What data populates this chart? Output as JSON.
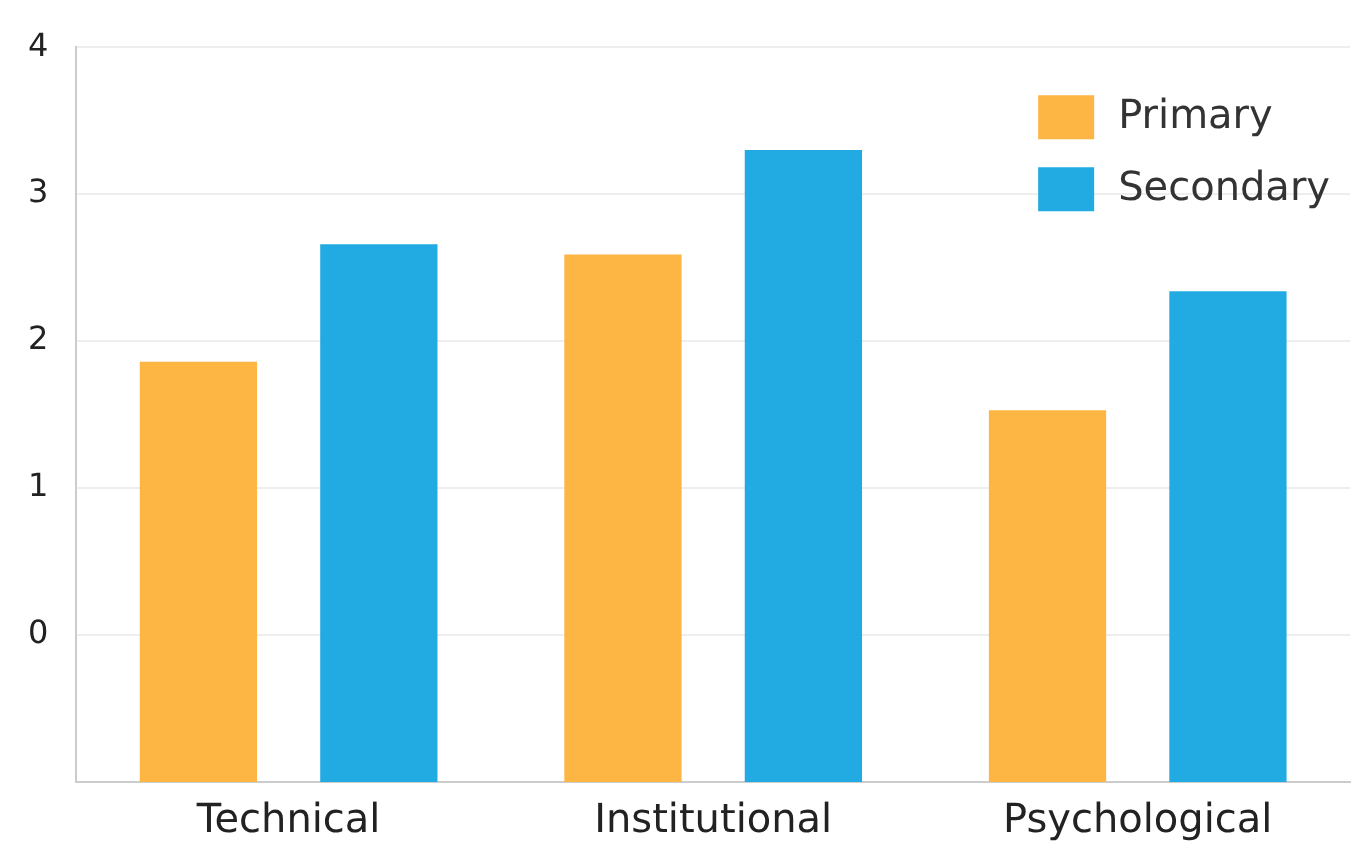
{
  "chart_data": {
    "type": "bar",
    "categories": [
      "Technical",
      "Institutional",
      "Psychological"
    ],
    "series": [
      {
        "name": "Primary",
        "color": "#fdb543",
        "base": [
          -1,
          -1,
          -1
        ],
        "values": [
          2.86,
          3.59,
          2.53
        ]
      },
      {
        "name": "Secondary",
        "color": "#22abe2",
        "base": [
          -1,
          -1,
          -1
        ],
        "values": [
          3.66,
          4.3,
          3.34
        ]
      }
    ],
    "ylim": [
      -1,
      4
    ],
    "yticks": [
      0,
      1,
      2,
      3,
      4
    ],
    "grid": "y",
    "legend": "top right"
  }
}
